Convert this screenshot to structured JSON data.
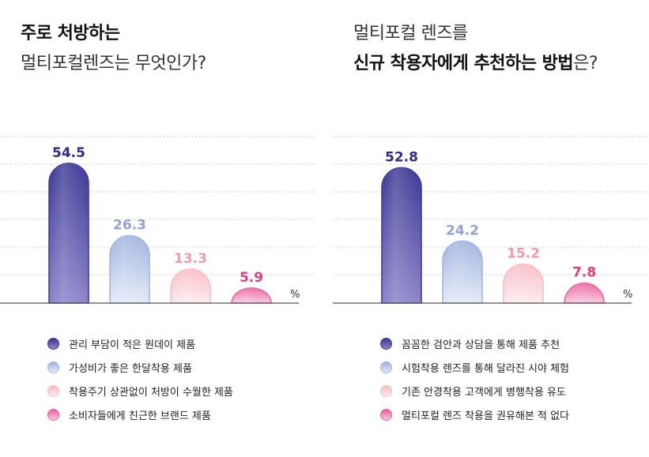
{
  "colors": {
    "series": [
      "#3b3794",
      "#9fb2de",
      "#f7bcc3",
      "#e8609b"
    ],
    "series_light": [
      "#8a83c9",
      "#e4eaf8",
      "#fdecef",
      "#f8c9de"
    ],
    "labels": [
      "#2e2a86",
      "#8ea3d4",
      "#f29aa8",
      "#d8407f"
    ],
    "grid": "#bfbfbf",
    "axis": "#555555"
  },
  "percent_unit": "%",
  "chart_data": [
    {
      "type": "bar",
      "title_line1": "주로 처방하는",
      "title_line2": "멀티포컬렌즈는 무엇인가?",
      "categories": [
        "관리 부담이 적은 원데이 제품",
        "가성비가 좋은 한달착용 제품",
        "착용주기 상관없이 처방이 수월한 제품",
        "소비자들에게 친근한 브랜드 제품"
      ],
      "values": [
        54.5,
        26.3,
        13.3,
        5.9
      ],
      "value_labels": [
        "54.5",
        "26.3",
        "13.3",
        "5.9"
      ],
      "ylim": [
        0,
        60
      ],
      "grid": true,
      "legend": "bottom"
    },
    {
      "type": "bar",
      "title_line1": "멀티포컬 렌즈를",
      "title_line2_bold": "신규 착용자에게 추천하는 방법",
      "title_line2_rest": "은?",
      "categories": [
        "꼼꼼한 검안과 상담을 통해 제품 추천",
        "시험착용 렌즈를 통해 달라진 시야 체험",
        "기존 안경착용 고객에게 병행착용 유도",
        "멀티포컬 렌즈 착용을 권유해본 적 없다"
      ],
      "values": [
        52.8,
        24.2,
        15.2,
        7.8
      ],
      "value_labels": [
        "52.8",
        "24.2",
        "15.2",
        "7.8"
      ],
      "ylim": [
        0,
        60
      ],
      "grid": true,
      "legend": "bottom"
    }
  ]
}
